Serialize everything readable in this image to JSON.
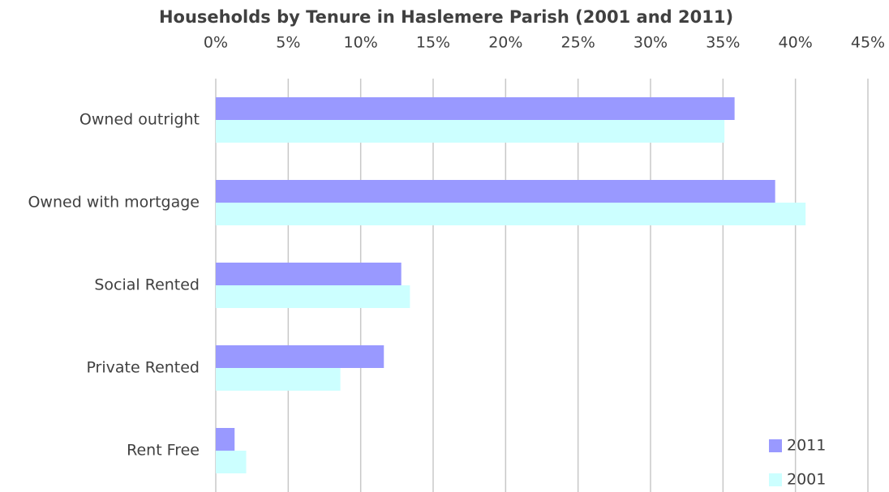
{
  "chart_data": {
    "type": "hbar",
    "title": "Households by Tenure in Haslemere Parish (2001 and 2011)",
    "categories": [
      "Owned outright",
      "Owned with mortgage",
      "Social Rented",
      "Private Rented",
      "Rent Free"
    ],
    "series": [
      {
        "name": "2011",
        "color": "#9999ff",
        "values": [
          35.8,
          38.6,
          12.8,
          11.6,
          1.3
        ]
      },
      {
        "name": "2001",
        "color": "#ccffff",
        "values": [
          35.1,
          40.7,
          13.4,
          8.6,
          2.1
        ]
      }
    ],
    "xlim": [
      0,
      45
    ],
    "xticks": [
      {
        "value": 0,
        "label": "0%"
      },
      {
        "value": 5,
        "label": "5%"
      },
      {
        "value": 10,
        "label": "10%"
      },
      {
        "value": 15,
        "label": "15%"
      },
      {
        "value": 20,
        "label": "20%"
      },
      {
        "value": 25,
        "label": "25%"
      },
      {
        "value": 30,
        "label": "30%"
      },
      {
        "value": 35,
        "label": "35%"
      },
      {
        "value": 40,
        "label": "40%"
      },
      {
        "value": 45,
        "label": "45%"
      }
    ],
    "grid": true,
    "legend": "lower right"
  }
}
